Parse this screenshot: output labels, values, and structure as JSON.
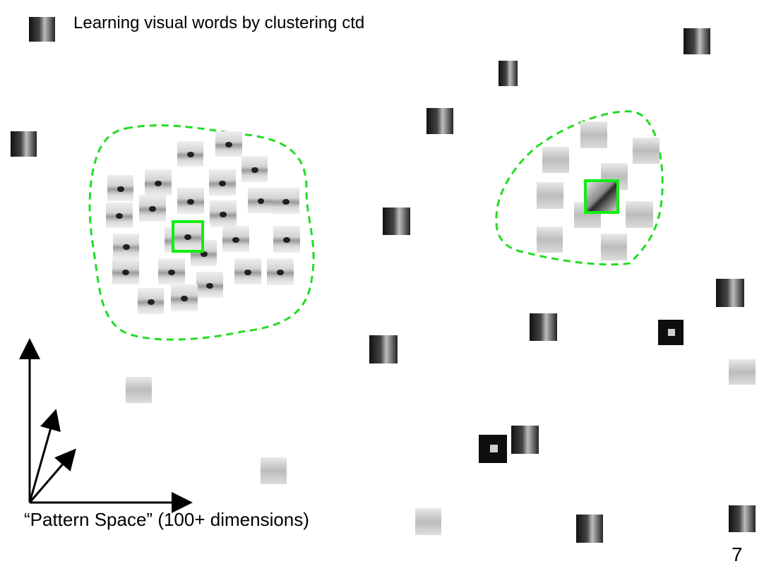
{
  "slide": {
    "title": "Learning visual words by clustering ctd",
    "caption": "“Pattern Space” (100+ dimensions)",
    "page_number": "7"
  },
  "colors": {
    "cluster_outline": "#22dd22",
    "highlight_box": "#11ee11",
    "axes": "#000000"
  },
  "icons": {
    "logo": "corner-logo-icon",
    "image_patch": "image-patch-icon"
  }
}
